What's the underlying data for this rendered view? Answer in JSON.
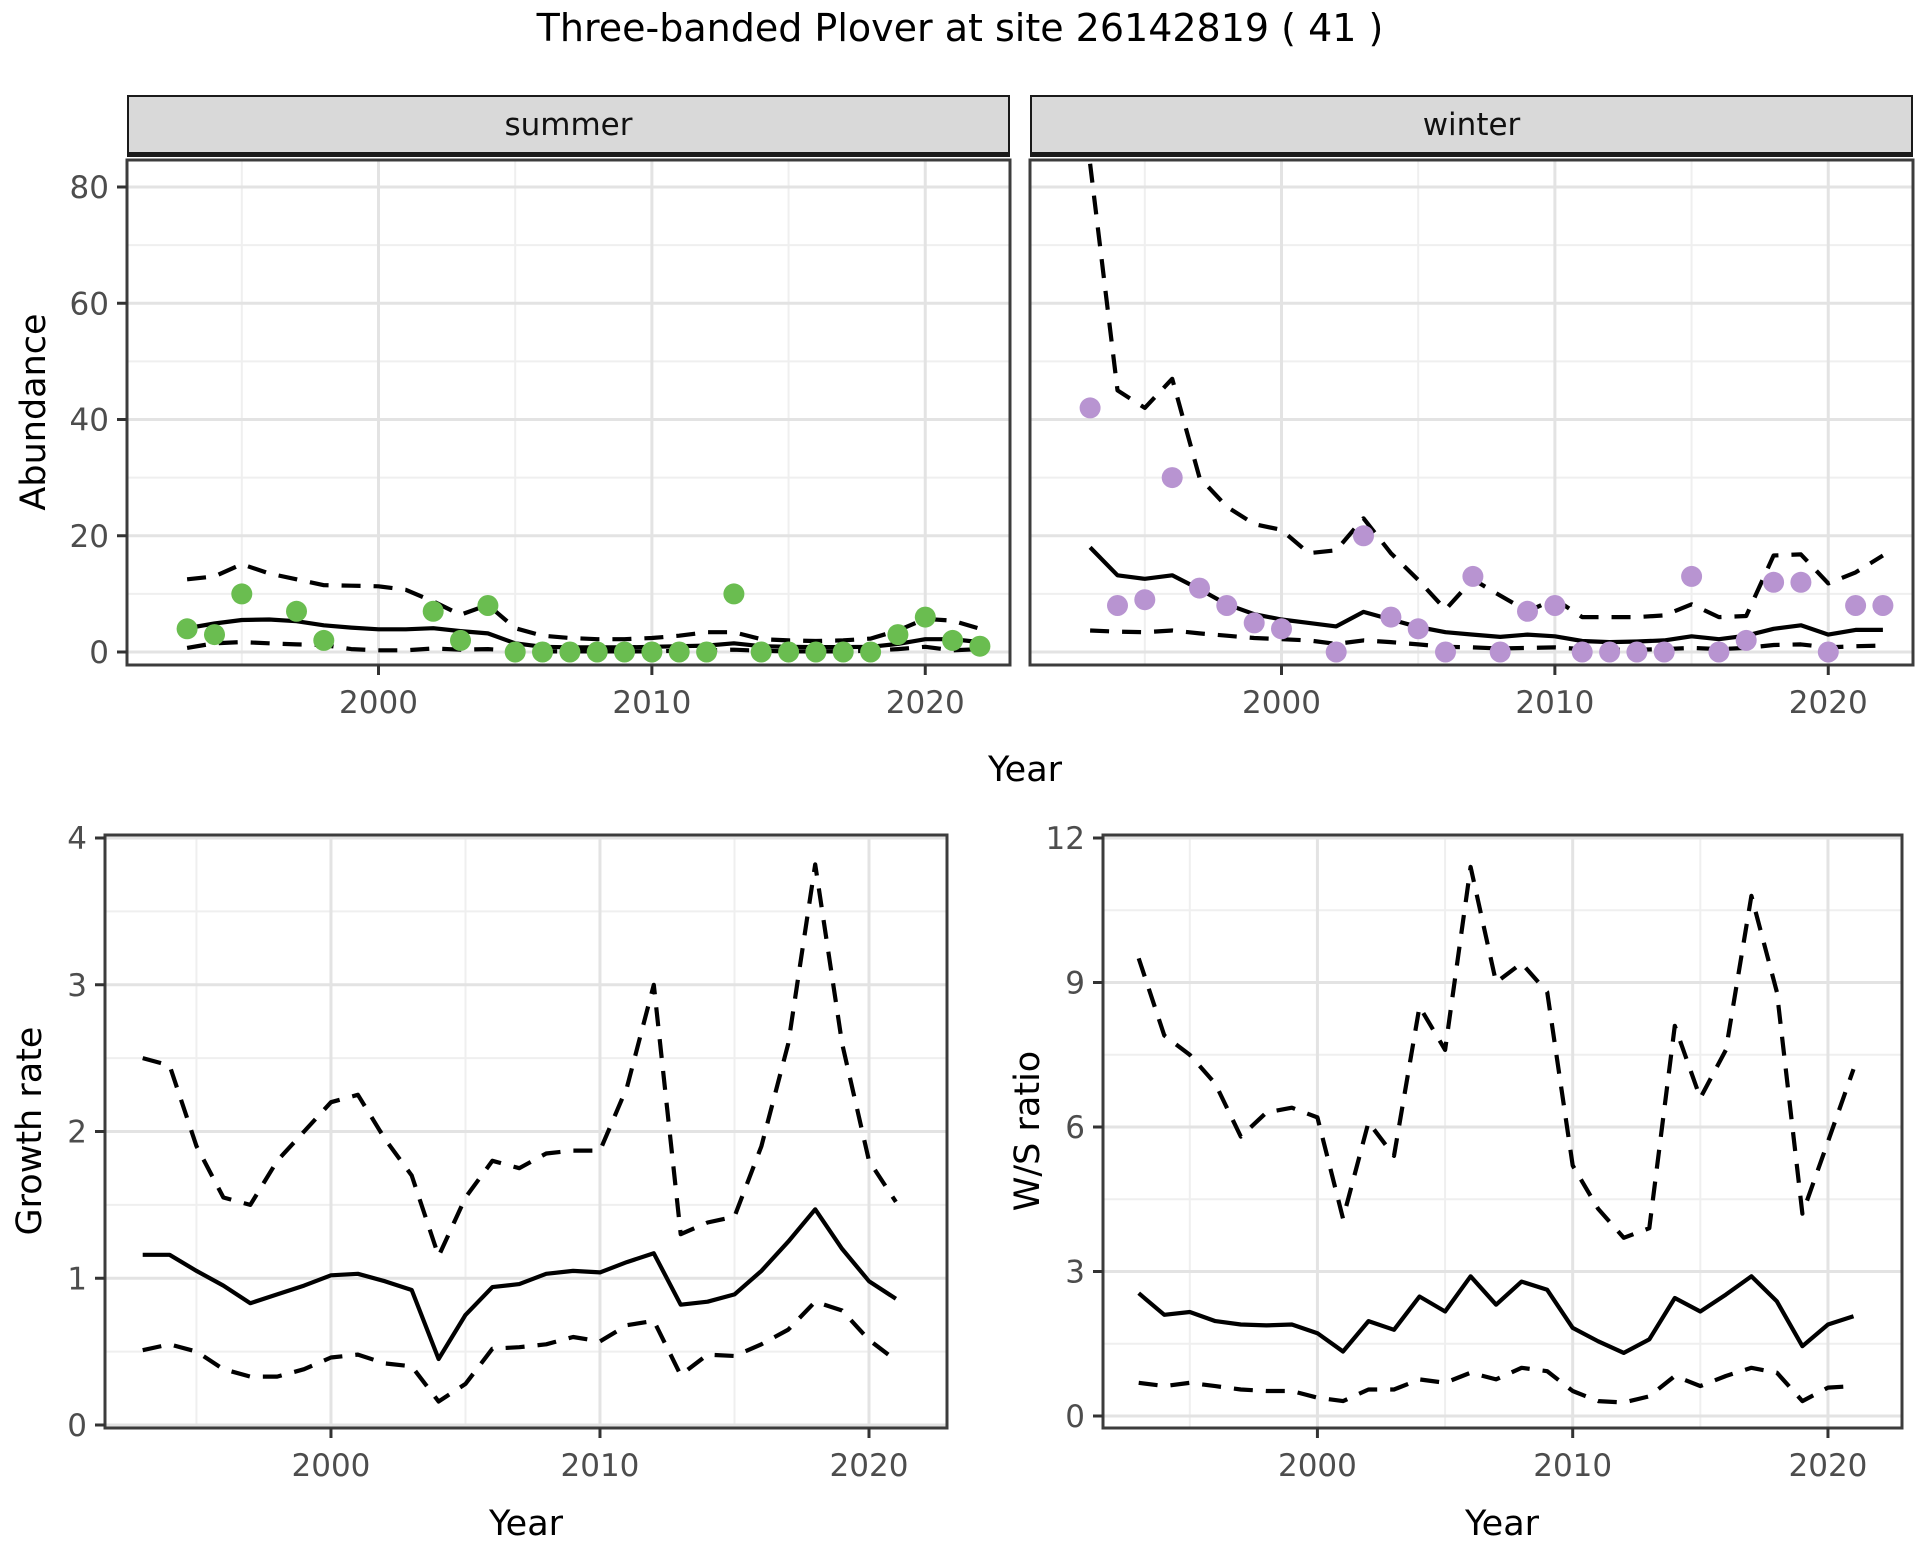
{
  "title": "Three-banded Plover at site 26142819 ( 41 )",
  "colors": {
    "summer_point": "#6abd50",
    "winter_point": "#b894d1",
    "line": "#000000",
    "grid_major": "#e3e3e3",
    "grid_minor": "#efefef",
    "strip_bg": "#d9d9d9",
    "panel_border": "#3c3c3c",
    "tick_text": "#4d4d4d",
    "background": "#ffffff"
  },
  "facets": {
    "summer_label": "summer",
    "winter_label": "winter"
  },
  "axis_titles": {
    "abundance": "Abundance",
    "year_top": "Year",
    "growth": "Growth rate",
    "year_growth": "Year",
    "ws_ratio": "W/S ratio",
    "year_ws": "Year"
  },
  "chart_data": [
    {
      "id": "abundance-summer",
      "type": "line",
      "facet": "summer",
      "xlabel": "Year",
      "ylabel": "Abundance",
      "xlim": [
        1990.8,
        2023.1
      ],
      "ylim": [
        0,
        80
      ],
      "x_major": [
        2000,
        2010,
        2020
      ],
      "x_minor": [
        1995,
        2005,
        2015
      ],
      "y_major": [
        0,
        20,
        40,
        60,
        80
      ],
      "y_minor": [
        10,
        30,
        50,
        70
      ],
      "grid": true,
      "legend": "none",
      "series": [
        {
          "name": "observed-counts",
          "type": "points",
          "color": "#6abd50",
          "x": [
            1993,
            1994,
            1995,
            1997,
            1998,
            2002,
            2003,
            2004,
            2005,
            2006,
            2007,
            2008,
            2009,
            2010,
            2011,
            2012,
            2013,
            2014,
            2015,
            2016,
            2017,
            2018,
            2019,
            2020,
            2021,
            2022
          ],
          "y": [
            4,
            3,
            10,
            7,
            2,
            7,
            2,
            8,
            0,
            0,
            0,
            0,
            0,
            0,
            0,
            0,
            10,
            0,
            0,
            0,
            0,
            0,
            3,
            6,
            2,
            1
          ]
        },
        {
          "name": "model-estimate",
          "type": "line",
          "style": "solid",
          "x": [
            1993,
            1994,
            1995,
            1996,
            1997,
            1998,
            1999,
            2000,
            2001,
            2002,
            2003,
            2004,
            2005,
            2006,
            2007,
            2008,
            2009,
            2010,
            2011,
            2012,
            2013,
            2014,
            2015,
            2016,
            2017,
            2018,
            2019,
            2020,
            2021,
            2022
          ],
          "y": [
            4.1,
            4.9,
            5.5,
            5.6,
            5.3,
            4.6,
            4.2,
            3.9,
            3.9,
            4.1,
            3.6,
            3.2,
            1.5,
            0.9,
            0.8,
            0.8,
            0.8,
            0.9,
            1.0,
            1.1,
            1.5,
            1.0,
            0.9,
            0.85,
            0.85,
            0.9,
            1.4,
            2.2,
            2.2,
            1.7
          ]
        },
        {
          "name": "upper-ci",
          "type": "line",
          "style": "dashed",
          "x": [
            1993,
            1994,
            1995,
            1996,
            1997,
            1998,
            1999,
            2000,
            2001,
            2002,
            2003,
            2004,
            2005,
            2006,
            2007,
            2008,
            2009,
            2010,
            2011,
            2012,
            2013,
            2014,
            2015,
            2016,
            2017,
            2018,
            2019,
            2020,
            2021,
            2022
          ],
          "y": [
            12.5,
            13,
            15.1,
            13.5,
            12.5,
            11.5,
            11.4,
            11.3,
            10.7,
            8.7,
            6.4,
            8.1,
            4.1,
            2.8,
            2.4,
            2.2,
            2.2,
            2.4,
            2.8,
            3.4,
            3.4,
            2.2,
            2.0,
            1.9,
            2.0,
            2.3,
            3.7,
            5.7,
            5.4,
            4.0
          ]
        },
        {
          "name": "lower-ci",
          "type": "line",
          "style": "dashed",
          "x": [
            1993,
            1994,
            1995,
            1996,
            1997,
            1998,
            1999,
            2000,
            2001,
            2002,
            2003,
            2004,
            2005,
            2006,
            2007,
            2008,
            2009,
            2010,
            2011,
            2012,
            2013,
            2014,
            2015,
            2016,
            2017,
            2018,
            2019,
            2020,
            2021,
            2022
          ],
          "y": [
            0.7,
            1.5,
            1.7,
            1.5,
            1.3,
            1.2,
            0.5,
            0.3,
            0.3,
            0.6,
            0.4,
            0.5,
            0.2,
            0.1,
            0.1,
            0.1,
            0.1,
            0.1,
            0.2,
            0.3,
            0.4,
            0.2,
            0.1,
            0.1,
            0.1,
            0.2,
            0.5,
            0.9,
            0.3,
            0.5
          ]
        }
      ]
    },
    {
      "id": "abundance-winter",
      "type": "line",
      "facet": "winter",
      "xlabel": "Year",
      "ylabel": "Abundance",
      "xlim": [
        1990.8,
        2023.1
      ],
      "ylim": [
        0,
        80
      ],
      "x_major": [
        2000,
        2010,
        2020
      ],
      "x_minor": [
        1995,
        2005,
        2015
      ],
      "y_major": [
        0,
        20,
        40,
        60,
        80
      ],
      "y_minor": [
        10,
        30,
        50,
        70
      ],
      "grid": true,
      "legend": "none",
      "series": [
        {
          "name": "observed-counts",
          "type": "points",
          "color": "#b894d1",
          "x": [
            1993,
            1994,
            1995,
            1996,
            1997,
            1998,
            1999,
            2000,
            2002,
            2003,
            2004,
            2005,
            2006,
            2007,
            2008,
            2009,
            2010,
            2011,
            2012,
            2013,
            2014,
            2015,
            2016,
            2017,
            2018,
            2019,
            2020,
            2021,
            2022
          ],
          "y": [
            42,
            8,
            9,
            30,
            11,
            8,
            5,
            4,
            0,
            20,
            6,
            4,
            0,
            13,
            0,
            7,
            8,
            0,
            0,
            0,
            0,
            13,
            0,
            2,
            12,
            12,
            0,
            8,
            8
          ]
        },
        {
          "name": "model-estimate",
          "type": "line",
          "style": "solid",
          "x": [
            1993,
            1994,
            1995,
            1996,
            1997,
            1998,
            1999,
            2000,
            2001,
            2002,
            2003,
            2004,
            2005,
            2006,
            2007,
            2008,
            2009,
            2010,
            2011,
            2012,
            2013,
            2014,
            2015,
            2016,
            2017,
            2018,
            2019,
            2020,
            2021,
            2022
          ],
          "y": [
            18,
            13.2,
            12.6,
            13.2,
            10.8,
            8.2,
            6.5,
            5.6,
            5.0,
            4.4,
            6.9,
            5.6,
            4.3,
            3.4,
            3.0,
            2.6,
            3.0,
            2.7,
            1.9,
            1.7,
            1.8,
            2.0,
            2.7,
            2.2,
            2.8,
            4.0,
            4.6,
            3.0,
            3.8,
            3.8
          ]
        },
        {
          "name": "upper-ci",
          "type": "line",
          "style": "dashed",
          "x": [
            1993,
            1994,
            1995,
            1996,
            1997,
            1998,
            1999,
            2000,
            2001,
            2002,
            2003,
            2004,
            2005,
            2006,
            2007,
            2008,
            2009,
            2010,
            2011,
            2012,
            2013,
            2014,
            2015,
            2016,
            2017,
            2018,
            2019,
            2020,
            2021,
            2022
          ],
          "y": [
            84,
            45,
            42,
            47,
            30,
            25,
            22,
            21,
            17,
            17.5,
            23,
            17,
            12.4,
            7.3,
            12.5,
            9.7,
            7.0,
            9.1,
            6.0,
            6.0,
            6.0,
            6.3,
            8.2,
            6.0,
            6.2,
            16.6,
            16.8,
            11.8,
            13.7,
            16.6
          ]
        },
        {
          "name": "lower-ci",
          "type": "line",
          "style": "dashed",
          "x": [
            1993,
            1994,
            1995,
            1996,
            1997,
            1998,
            1999,
            2000,
            2001,
            2002,
            2003,
            2004,
            2005,
            2006,
            2007,
            2008,
            2009,
            2010,
            2011,
            2012,
            2013,
            2014,
            2015,
            2016,
            2017,
            2018,
            2019,
            2020,
            2021,
            2022
          ],
          "y": [
            3.7,
            3.5,
            3.4,
            3.7,
            3.2,
            2.8,
            2.4,
            2.2,
            2.0,
            1.4,
            2.0,
            1.7,
            1.3,
            0.9,
            0.8,
            0.6,
            0.7,
            0.8,
            0.5,
            0.4,
            0.4,
            0.5,
            0.7,
            0.5,
            0.7,
            1.2,
            1.3,
            0.8,
            1.0,
            1.1
          ]
        }
      ]
    },
    {
      "id": "growth-rate",
      "type": "line",
      "xlabel": "Year",
      "ylabel": "Growth rate",
      "xlim": [
        1991.6,
        2022.9
      ],
      "ylim": [
        0,
        4
      ],
      "x_major": [
        2000,
        2010,
        2020
      ],
      "x_minor": [
        1995,
        2005,
        2015
      ],
      "y_major": [
        0,
        1,
        2,
        3,
        4
      ],
      "y_minor": [
        0.5,
        1.5,
        2.5,
        3.5
      ],
      "grid": true,
      "legend": "none",
      "series": [
        {
          "name": "model-estimate",
          "type": "line",
          "style": "solid",
          "x": [
            1993,
            1994,
            1995,
            1996,
            1997,
            1998,
            1999,
            2000,
            2001,
            2002,
            2003,
            2004,
            2005,
            2006,
            2007,
            2008,
            2009,
            2010,
            2011,
            2012,
            2013,
            2014,
            2015,
            2016,
            2017,
            2018,
            2019,
            2020,
            2021
          ],
          "y": [
            1.16,
            1.16,
            1.05,
            0.95,
            0.83,
            0.89,
            0.95,
            1.02,
            1.03,
            0.98,
            0.92,
            0.45,
            0.75,
            0.94,
            0.96,
            1.03,
            1.05,
            1.04,
            1.11,
            1.17,
            0.82,
            0.84,
            0.89,
            1.05,
            1.25,
            1.47,
            1.2,
            0.98,
            0.86
          ]
        },
        {
          "name": "upper-ci",
          "type": "line",
          "style": "dashed",
          "x": [
            1993,
            1994,
            1995,
            1996,
            1997,
            1998,
            1999,
            2000,
            2001,
            2002,
            2003,
            2004,
            2005,
            2006,
            2007,
            2008,
            2009,
            2010,
            2011,
            2012,
            2013,
            2014,
            2015,
            2016,
            2017,
            2018,
            2019,
            2020,
            2021
          ],
          "y": [
            2.5,
            2.45,
            1.9,
            1.55,
            1.5,
            1.8,
            2.0,
            2.2,
            2.25,
            1.95,
            1.7,
            1.15,
            1.55,
            1.8,
            1.75,
            1.85,
            1.87,
            1.87,
            2.3,
            3.0,
            1.3,
            1.38,
            1.42,
            1.9,
            2.6,
            3.82,
            2.6,
            1.8,
            1.52
          ]
        },
        {
          "name": "lower-ci",
          "type": "line",
          "style": "dashed",
          "x": [
            1993,
            1994,
            1995,
            1996,
            1997,
            1998,
            1999,
            2000,
            2001,
            2002,
            2003,
            2004,
            2005,
            2006,
            2007,
            2008,
            2009,
            2010,
            2011,
            2012,
            2013,
            2014,
            2015,
            2016,
            2017,
            2018,
            2019,
            2020,
            2021
          ],
          "y": [
            0.51,
            0.55,
            0.5,
            0.38,
            0.33,
            0.33,
            0.38,
            0.46,
            0.48,
            0.42,
            0.4,
            0.16,
            0.28,
            0.52,
            0.53,
            0.55,
            0.6,
            0.57,
            0.68,
            0.71,
            0.34,
            0.48,
            0.47,
            0.55,
            0.65,
            0.84,
            0.78,
            0.58,
            0.44
          ]
        }
      ]
    },
    {
      "id": "ws-ratio",
      "type": "line",
      "xlabel": "Year",
      "ylabel": "W/S ratio",
      "xlim": [
        1991.6,
        2022.9
      ],
      "ylim": [
        0,
        12
      ],
      "x_major": [
        2000,
        2010,
        2020
      ],
      "x_minor": [
        1995,
        2005,
        2015
      ],
      "y_major": [
        0,
        3,
        6,
        9,
        12
      ],
      "y_minor": [
        1.5,
        4.5,
        7.5,
        10.5
      ],
      "grid": true,
      "legend": "none",
      "series": [
        {
          "name": "model-estimate",
          "type": "line",
          "style": "solid",
          "x": [
            1993,
            1994,
            1995,
            1996,
            1997,
            1998,
            1999,
            2000,
            2001,
            2002,
            2003,
            2004,
            2005,
            2006,
            2007,
            2008,
            2009,
            2010,
            2011,
            2012,
            2013,
            2014,
            2015,
            2016,
            2017,
            2018,
            2019,
            2020,
            2021
          ],
          "y": [
            2.55,
            2.1,
            2.16,
            1.97,
            1.9,
            1.88,
            1.9,
            1.72,
            1.34,
            1.97,
            1.79,
            2.48,
            2.17,
            2.9,
            2.31,
            2.79,
            2.62,
            1.83,
            1.55,
            1.31,
            1.59,
            2.45,
            2.17,
            2.52,
            2.9,
            2.38,
            1.45,
            1.9,
            2.07
          ]
        },
        {
          "name": "upper-ci",
          "type": "line",
          "style": "dashed",
          "x": [
            1993,
            1994,
            1995,
            1996,
            1997,
            1998,
            1999,
            2000,
            2001,
            2002,
            2003,
            2004,
            2005,
            2006,
            2007,
            2008,
            2009,
            2010,
            2011,
            2012,
            2013,
            2014,
            2015,
            2016,
            2017,
            2018,
            2019,
            2020,
            2021
          ],
          "y": [
            9.5,
            7.9,
            7.5,
            6.9,
            5.8,
            6.3,
            6.4,
            6.2,
            4.1,
            6.1,
            5.4,
            8.5,
            7.6,
            11.4,
            9.0,
            9.4,
            8.8,
            5.2,
            4.3,
            3.7,
            3.9,
            8.1,
            6.6,
            7.6,
            10.8,
            8.8,
            4.2,
            5.7,
            7.2
          ]
        },
        {
          "name": "lower-ci",
          "type": "line",
          "style": "dashed",
          "x": [
            1993,
            1994,
            1995,
            1996,
            1997,
            1998,
            1999,
            2000,
            2001,
            2002,
            2003,
            2004,
            2005,
            2006,
            2007,
            2008,
            2009,
            2010,
            2011,
            2012,
            2013,
            2014,
            2015,
            2016,
            2017,
            2018,
            2019,
            2020,
            2021
          ],
          "y": [
            0.69,
            0.62,
            0.69,
            0.62,
            0.55,
            0.52,
            0.52,
            0.38,
            0.31,
            0.55,
            0.55,
            0.76,
            0.69,
            0.9,
            0.76,
            1.0,
            0.93,
            0.52,
            0.31,
            0.28,
            0.41,
            0.83,
            0.62,
            0.83,
            1.0,
            0.9,
            0.31,
            0.59,
            0.62
          ]
        }
      ]
    }
  ]
}
